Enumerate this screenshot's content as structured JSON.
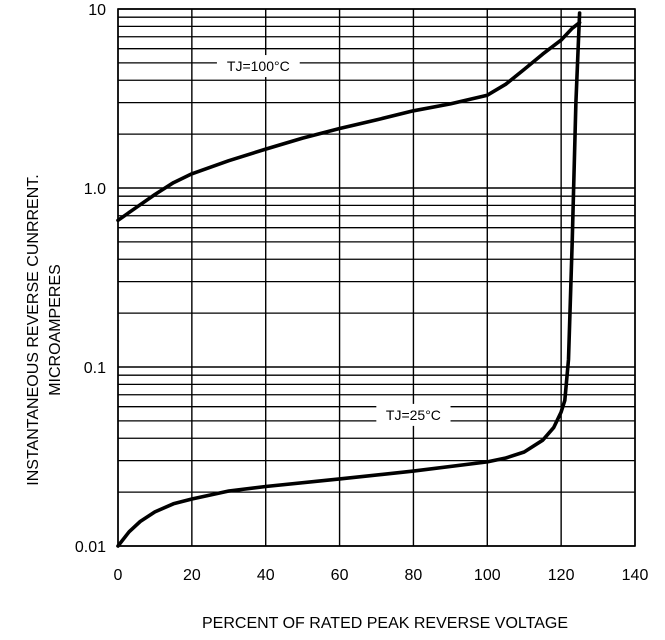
{
  "chart_data": {
    "type": "line",
    "xlabel": "PERCENT OF RATED PEAK  REVERSE VOLTAGE",
    "ylabel_line1": "INSTANTANEOUS REVERSE CUNRRENT.",
    "ylabel_line2": "MICROAMPERES",
    "xlim": [
      0,
      140
    ],
    "ylim": [
      0.01,
      10
    ],
    "yscale": "log",
    "grid": true,
    "x_ticks": [
      "0",
      "20",
      "40",
      "60",
      "80",
      "100",
      "120",
      "140"
    ],
    "y_ticks": [
      "0.01",
      "0.1",
      "1.0",
      "10"
    ],
    "series": [
      {
        "name": "TJ=100°C",
        "x": [
          0,
          5,
          10,
          15,
          20,
          30,
          40,
          50,
          60,
          70,
          80,
          90,
          100,
          105,
          110,
          115,
          120,
          123,
          125
        ],
        "y": [
          0.66,
          0.78,
          0.92,
          1.07,
          1.2,
          1.42,
          1.65,
          1.9,
          2.15,
          2.4,
          2.7,
          2.95,
          3.3,
          3.8,
          4.6,
          5.6,
          6.7,
          7.8,
          8.4
        ]
      },
      {
        "name": "TJ=25°C",
        "x": [
          0,
          3,
          6,
          10,
          15,
          20,
          30,
          40,
          60,
          80,
          100,
          105,
          110,
          115,
          118,
          120,
          121,
          122,
          123,
          124,
          125
        ],
        "y": [
          0.01,
          0.012,
          0.0137,
          0.0155,
          0.0172,
          0.0183,
          0.0203,
          0.0215,
          0.0237,
          0.0262,
          0.0295,
          0.031,
          0.0335,
          0.039,
          0.046,
          0.056,
          0.065,
          0.11,
          0.5,
          3.0,
          9.5
        ]
      }
    ],
    "annotations": [
      {
        "text": "TJ=100°C",
        "x": 38,
        "y": 4.8
      },
      {
        "text": "TJ=25°C",
        "x": 80,
        "y": 0.054
      }
    ]
  }
}
